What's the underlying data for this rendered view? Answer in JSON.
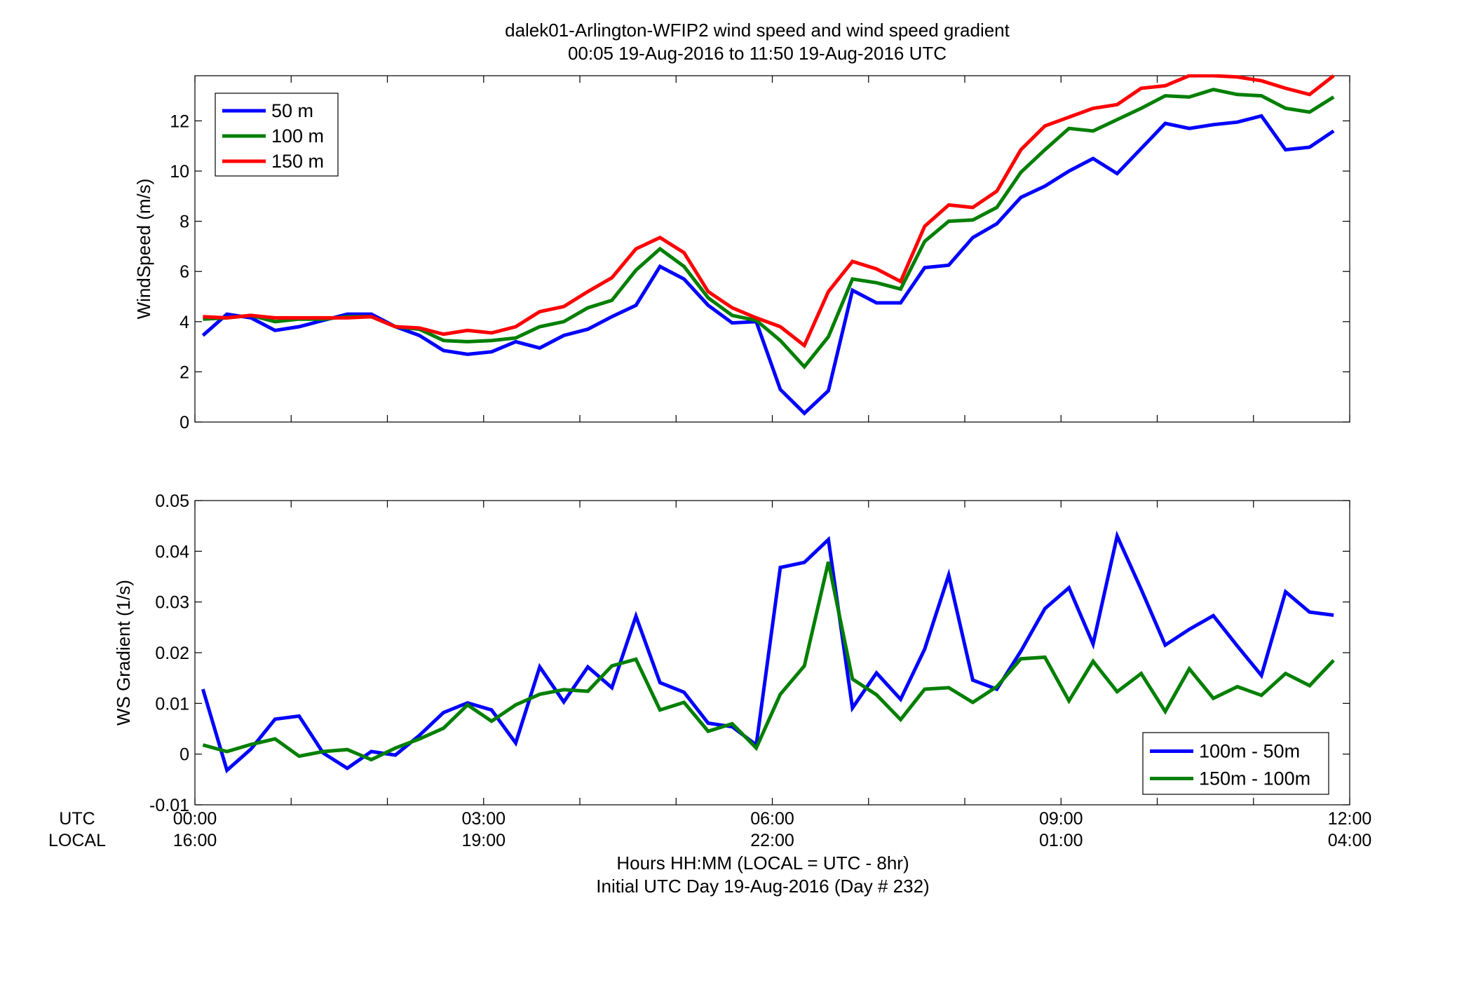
{
  "figure": {
    "title_line1": "dalek01-Arlington-WFIP2  wind speed and wind speed gradient",
    "title_line2": "00:05 19-Aug-2016 to 11:50 19-Aug-2016  UTC",
    "utc_label": "UTC",
    "local_label": "LOCAL",
    "xlabel_line1": "Hours HH:MM  (LOCAL = UTC - 8hr)",
    "xlabel_line2": "Initial UTC Day 19-Aug-2016 (Day # 232)",
    "utc_ticks": [
      "00:00",
      "03:00",
      "06:00",
      "09:00",
      "12:00"
    ],
    "local_ticks": [
      "16:00",
      "19:00",
      "22:00",
      "01:00",
      "04:00"
    ]
  },
  "chart_data": [
    {
      "type": "line",
      "ylabel": "WindSpeed (m/s)",
      "xlabel": "Hours HH:MM",
      "xlim": [
        0,
        12
      ],
      "ylim": [
        0,
        13.8
      ],
      "yticks": [
        0,
        2,
        4,
        6,
        8,
        10,
        12
      ],
      "ytick_labels": [
        "0",
        "2",
        "4",
        "6",
        "8",
        "10",
        "12"
      ],
      "grid": false,
      "legend_position": "top-left",
      "x_start": 0.083,
      "x_step": 0.25,
      "series": [
        {
          "name": "50 m",
          "color": "#0000ff",
          "values": [
            3.45,
            4.3,
            4.15,
            3.65,
            3.8,
            4.05,
            4.3,
            4.3,
            3.8,
            3.45,
            2.85,
            2.7,
            2.8,
            3.2,
            2.95,
            3.45,
            3.7,
            4.2,
            4.65,
            6.2,
            5.7,
            4.65,
            3.95,
            4.0,
            1.3,
            0.35,
            1.25,
            5.25,
            4.75,
            4.75,
            6.15,
            6.25,
            7.35,
            7.9,
            8.95,
            9.4,
            10.0,
            10.5,
            9.9,
            10.9,
            11.9,
            11.7,
            11.85,
            11.95,
            12.2,
            10.85,
            10.95,
            11.6
          ]
        },
        {
          "name": "100 m",
          "color": "#007f00",
          "values": [
            4.1,
            4.15,
            4.25,
            4.0,
            4.1,
            4.1,
            4.2,
            4.2,
            3.8,
            3.7,
            3.25,
            3.2,
            3.25,
            3.35,
            3.8,
            4.0,
            4.55,
            4.85,
            6.05,
            6.9,
            6.2,
            4.95,
            4.25,
            4.05,
            3.25,
            2.2,
            3.4,
            5.7,
            5.55,
            5.3,
            7.2,
            8.0,
            8.05,
            8.55,
            9.95,
            10.85,
            11.7,
            11.6,
            12.05,
            12.5,
            13.0,
            12.95,
            13.25,
            13.05,
            13.0,
            12.5,
            12.35,
            12.95
          ]
        },
        {
          "name": "150 m",
          "color": "#ff0000",
          "values": [
            4.2,
            4.15,
            4.25,
            4.15,
            4.15,
            4.15,
            4.15,
            4.2,
            3.8,
            3.75,
            3.5,
            3.65,
            3.55,
            3.8,
            4.4,
            4.6,
            5.2,
            5.75,
            6.9,
            7.35,
            6.75,
            5.2,
            4.55,
            4.15,
            3.8,
            3.05,
            5.2,
            6.4,
            6.1,
            5.6,
            7.8,
            8.65,
            8.55,
            9.2,
            10.85,
            11.8,
            12.15,
            12.5,
            12.65,
            13.3,
            13.4,
            13.8,
            13.8,
            13.75,
            13.6,
            13.3,
            13.05,
            13.8
          ]
        }
      ]
    },
    {
      "type": "line",
      "ylabel": "WS Gradient (1/s)",
      "xlabel": "Hours HH:MM",
      "xlim": [
        0,
        12
      ],
      "ylim": [
        -0.01,
        0.05
      ],
      "yticks": [
        -0.01,
        0,
        0.01,
        0.02,
        0.03,
        0.04,
        0.05
      ],
      "ytick_labels": [
        "-0.01",
        "0",
        "0.01",
        "0.02",
        "0.03",
        "0.04",
        "0.05"
      ],
      "grid": false,
      "legend_position": "bottom-right",
      "x_start": 0.083,
      "x_step": 0.25,
      "series": [
        {
          "name": "100m - 50m",
          "color": "#0000ff",
          "values": [
            0.0128,
            -0.0032,
            0.001,
            0.0069,
            0.0075,
            0.0002,
            -0.0028,
            0.0005,
            -0.0002,
            0.0037,
            0.0082,
            0.0101,
            0.0087,
            0.0022,
            0.0172,
            0.0103,
            0.0172,
            0.0131,
            0.0272,
            0.0141,
            0.0122,
            0.0061,
            0.0054,
            0.0018,
            0.0368,
            0.0378,
            0.0423,
            0.0091,
            0.016,
            0.0108,
            0.0207,
            0.0353,
            0.0146,
            0.0128,
            0.0203,
            0.0287,
            0.0328,
            0.0217,
            0.043,
            0.0325,
            0.0215,
            0.0246,
            0.0273,
            0.0213,
            0.0155,
            0.032,
            0.028,
            0.0274
          ]
        },
        {
          "name": "150m - 100m",
          "color": "#007f00",
          "values": [
            0.0018,
            0.0005,
            0.0019,
            0.003,
            -0.0004,
            0.0005,
            0.0009,
            -0.0011,
            0.0012,
            0.003,
            0.0051,
            0.0097,
            0.0065,
            0.0097,
            0.0118,
            0.0127,
            0.0124,
            0.0174,
            0.0187,
            0.0087,
            0.0102,
            0.0045,
            0.006,
            0.0012,
            0.0118,
            0.0174,
            0.0379,
            0.0148,
            0.0117,
            0.0068,
            0.0128,
            0.0131,
            0.0102,
            0.0133,
            0.0188,
            0.0191,
            0.0105,
            0.0183,
            0.0123,
            0.0159,
            0.0084,
            0.0168,
            0.011,
            0.0133,
            0.0116,
            0.0159,
            0.0135,
            0.0185
          ]
        }
      ]
    }
  ]
}
